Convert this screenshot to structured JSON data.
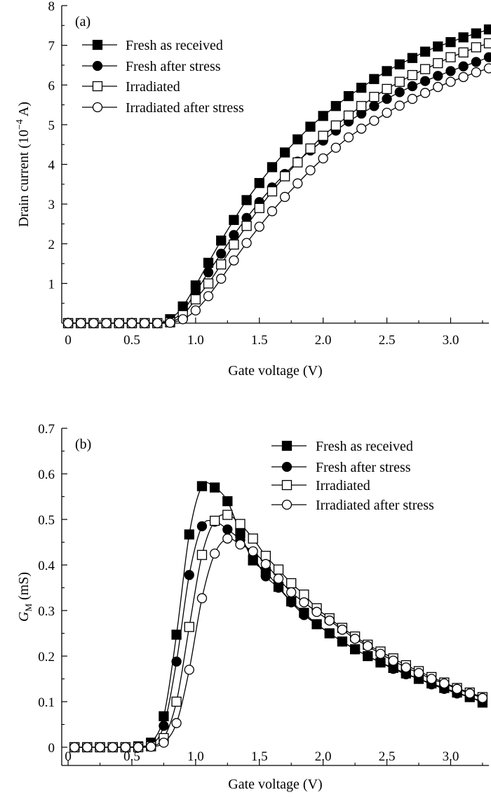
{
  "chart_data": [
    {
      "type": "line",
      "panel_label": "(a)",
      "xlabel": "Gate voltage (V)",
      "ylabel_prefix": "Drain current (10",
      "ylabel_exp": "−4",
      "ylabel_suffix": " A)",
      "xlim": [
        -0.05,
        3.3
      ],
      "ylim": [
        0,
        8
      ],
      "xticks": [
        "0",
        "0.5",
        "1.0",
        "1.5",
        "2.0",
        "2.5",
        "3.0"
      ],
      "yticks": [
        "1",
        "2",
        "3",
        "4",
        "5",
        "6",
        "7",
        "8"
      ],
      "legend_position": "top-left",
      "x": [
        0.0,
        0.1,
        0.2,
        0.3,
        0.4,
        0.5,
        0.6,
        0.7,
        0.8,
        0.9,
        1.0,
        1.1,
        1.2,
        1.3,
        1.4,
        1.5,
        1.6,
        1.7,
        1.8,
        1.9,
        2.0,
        2.1,
        2.2,
        2.3,
        2.4,
        2.5,
        2.6,
        2.7,
        2.8,
        2.9,
        3.0,
        3.1,
        3.2,
        3.3
      ],
      "series": [
        {
          "name": "Fresh as received",
          "marker": "square-filled",
          "values": [
            0,
            0,
            0,
            0,
            0,
            0,
            0,
            0,
            0.1,
            0.42,
            0.95,
            1.52,
            2.08,
            2.6,
            3.1,
            3.53,
            3.93,
            4.3,
            4.63,
            4.95,
            5.22,
            5.47,
            5.72,
            5.93,
            6.15,
            6.35,
            6.52,
            6.68,
            6.84,
            6.97,
            7.08,
            7.2,
            7.3,
            7.4
          ]
        },
        {
          "name": "Fresh after stress",
          "marker": "circle-filled",
          "values": [
            0,
            0,
            0,
            0,
            0,
            0,
            0,
            0,
            0.05,
            0.3,
            0.78,
            1.28,
            1.75,
            2.22,
            2.65,
            3.05,
            3.42,
            3.76,
            4.07,
            4.35,
            4.6,
            4.85,
            5.08,
            5.28,
            5.47,
            5.65,
            5.82,
            5.97,
            6.1,
            6.23,
            6.35,
            6.47,
            6.58,
            6.7
          ]
        },
        {
          "name": "Irradiated",
          "marker": "square-open",
          "values": [
            0,
            0,
            0,
            0,
            0,
            0,
            0,
            0,
            0.02,
            0.2,
            0.6,
            1.0,
            1.48,
            1.98,
            2.45,
            2.9,
            3.32,
            3.7,
            4.05,
            4.4,
            4.72,
            4.98,
            5.23,
            5.47,
            5.7,
            5.9,
            6.08,
            6.25,
            6.4,
            6.55,
            6.7,
            6.82,
            6.95,
            7.05
          ]
        },
        {
          "name": "Irradiated after stress",
          "marker": "circle-open",
          "values": [
            0,
            0,
            0,
            0,
            0,
            0,
            0,
            0,
            0.01,
            0.1,
            0.32,
            0.68,
            1.12,
            1.58,
            2.02,
            2.43,
            2.82,
            3.18,
            3.52,
            3.85,
            4.15,
            4.42,
            4.68,
            4.9,
            5.1,
            5.3,
            5.48,
            5.65,
            5.8,
            5.95,
            6.08,
            6.2,
            6.32,
            6.42
          ]
        }
      ]
    },
    {
      "type": "line",
      "panel_label": "(b)",
      "xlabel": "Gate voltage (V)",
      "ylabel_main": "G",
      "ylabel_sub": "M",
      "ylabel_suffix": " (mS)",
      "xlim": [
        -0.05,
        3.3
      ],
      "ylim": [
        -0.04,
        0.7
      ],
      "xticks": [
        "0",
        "0.5",
        "1.0",
        "1.5",
        "2.0",
        "2.5",
        "3.0"
      ],
      "yticks": [
        "0",
        "0.1",
        "0.2",
        "0.3",
        "0.4",
        "0.5",
        "0.6",
        "0.7"
      ],
      "legend_position": "top-right",
      "x": [
        0.05,
        0.15,
        0.25,
        0.35,
        0.45,
        0.55,
        0.65,
        0.75,
        0.85,
        0.95,
        1.05,
        1.15,
        1.25,
        1.35,
        1.45,
        1.55,
        1.65,
        1.75,
        1.85,
        1.95,
        2.05,
        2.15,
        2.25,
        2.35,
        2.45,
        2.55,
        2.65,
        2.75,
        2.85,
        2.95,
        3.05,
        3.15,
        3.25
      ],
      "series": [
        {
          "name": "Fresh as received",
          "marker": "square-filled",
          "values": [
            0,
            0,
            0,
            0,
            0,
            0.002,
            0.01,
            0.068,
            0.247,
            0.467,
            0.573,
            0.57,
            0.54,
            0.47,
            0.41,
            0.385,
            0.352,
            0.32,
            0.295,
            0.27,
            0.25,
            0.232,
            0.215,
            0.2,
            0.186,
            0.174,
            0.162,
            0.15,
            0.14,
            0.13,
            0.12,
            0.11,
            0.098
          ]
        },
        {
          "name": "Fresh after stress",
          "marker": "circle-filled",
          "values": [
            0,
            0,
            0,
            0,
            0,
            0.001,
            0.005,
            0.047,
            0.188,
            0.378,
            0.485,
            0.495,
            0.478,
            0.455,
            0.42,
            0.375,
            0.35,
            0.318,
            0.29,
            0.27,
            0.25,
            0.232,
            0.215,
            0.2,
            0.186,
            0.172,
            0.16,
            0.15,
            0.138,
            0.128,
            0.118,
            0.11,
            0.1
          ]
        },
        {
          "name": "Irradiated",
          "marker": "square-open",
          "values": [
            0,
            0,
            0,
            0,
            0,
            0,
            0.002,
            0.02,
            0.1,
            0.264,
            0.422,
            0.497,
            0.51,
            0.49,
            0.458,
            0.42,
            0.39,
            0.36,
            0.335,
            0.305,
            0.283,
            0.262,
            0.243,
            0.225,
            0.21,
            0.195,
            0.18,
            0.167,
            0.154,
            0.142,
            0.13,
            0.12,
            0.11
          ]
        },
        {
          "name": "Irradiated after stress",
          "marker": "circle-open",
          "values": [
            0,
            0,
            0,
            0,
            0,
            0,
            0.001,
            0.01,
            0.053,
            0.17,
            0.327,
            0.425,
            0.458,
            0.445,
            0.43,
            0.402,
            0.37,
            0.34,
            0.318,
            0.297,
            0.278,
            0.258,
            0.238,
            0.222,
            0.205,
            0.19,
            0.175,
            0.163,
            0.15,
            0.14,
            0.128,
            0.118,
            0.108
          ]
        }
      ]
    }
  ]
}
